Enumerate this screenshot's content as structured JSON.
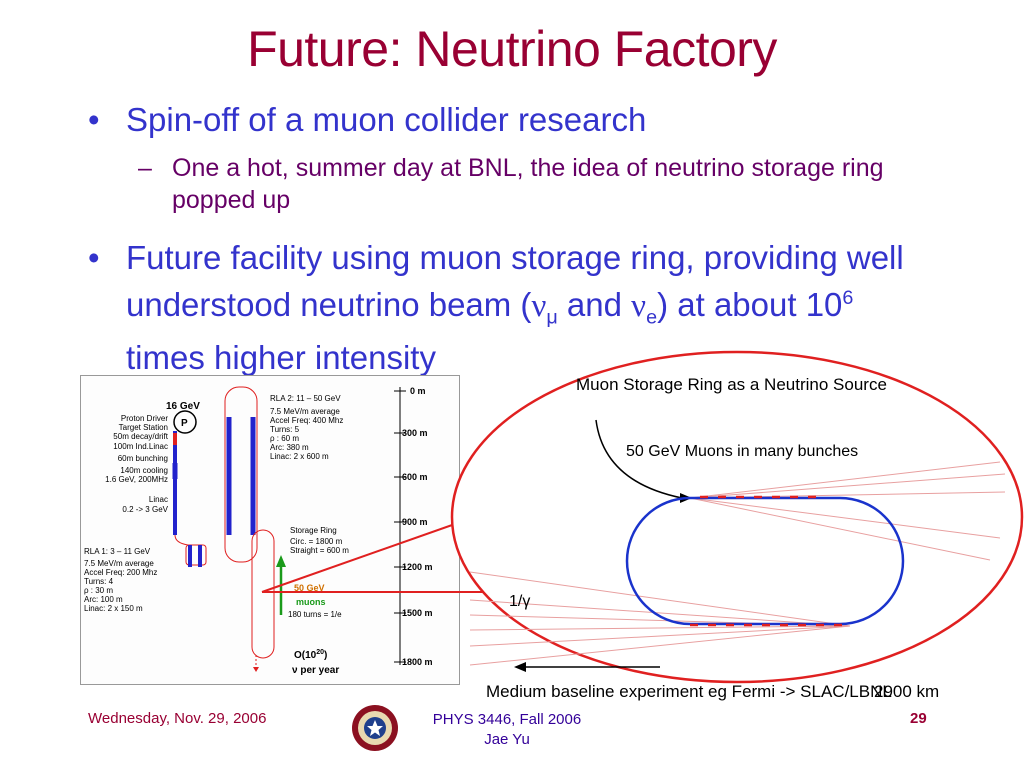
{
  "slide": {
    "title": "Future: Neutrino Factory",
    "bullets": [
      {
        "text": "Spin-off of a muon collider research"
      },
      {
        "text_pre": "Future facility using muon storage ring, providing well understood neutrino beam (",
        "nu": "ν",
        "mu": "μ",
        "and": " and ",
        "e": "e",
        "text_mid": ") at about 10",
        "exp": "6",
        "text_post": " times higher intensity"
      }
    ],
    "subbullets": [
      {
        "text": "One a hot, summer day at BNL, the idea of neutrino storage ring popped up"
      }
    ],
    "bullet_char": "•",
    "dash_char": "–"
  },
  "diagram_left": {
    "energy_top": "16 GeV",
    "p_label": "P",
    "proton_driver": [
      "Proton Driver",
      "Target Station",
      "50m decay/drift",
      "100m Ind.Linac",
      "60m bunching",
      "140m cooling",
      "1.6 GeV, 200MHz"
    ],
    "linac": [
      "Linac",
      "0.2 -> 3 GeV"
    ],
    "rla1": [
      "RLA 1:  3 – 11 GeV",
      "7.5 MeV/m average",
      "Accel Freq: 200 Mhz",
      "Turns:  4",
      "ρ :  30 m",
      "Arc:  100 m",
      "Linac:  2 x 150 m"
    ],
    "rla2": [
      "RLA 2:  11 – 50 GeV",
      "7.5 MeV/m average",
      "Accel Freq: 400 Mhz",
      "Turns:   5",
      "ρ :  60 m",
      "Arc:  380 m",
      "Linac:  2 x 600 m"
    ],
    "storage_ring": [
      "Storage Ring",
      "Circ. = 1800 m",
      "Straight = 600 m"
    ],
    "muons": [
      "50 GeV",
      "muons",
      "180 turns = 1/e"
    ],
    "output_line1": "O(10",
    "output_exp": "20",
    "output_close": ")",
    "output_line2": "ν per year",
    "scale": [
      "0 m",
      "300 m",
      "600 m",
      "900 m",
      "1200 m",
      "1500 m",
      "1800 m"
    ]
  },
  "diagram_right": {
    "title": "Muon Storage Ring as a Neutrino Source",
    "bunches": "50 GeV Muons in many bunches",
    "gamma": "1/γ",
    "baseline": "Medium baseline experiment eg Fermi -> SLAC/LBNL",
    "distance": "2900 km"
  },
  "footer": {
    "date": "Wednesday, Nov. 29, 2006",
    "course": "PHYS 3446, Fall 2006",
    "author": "Jae Yu",
    "page": "29"
  },
  "colors": {
    "title": "#990033",
    "bullet": "#3333cc",
    "sub": "#660066",
    "accent_red": "#e02020",
    "ring_blue": "#1a33cc"
  }
}
